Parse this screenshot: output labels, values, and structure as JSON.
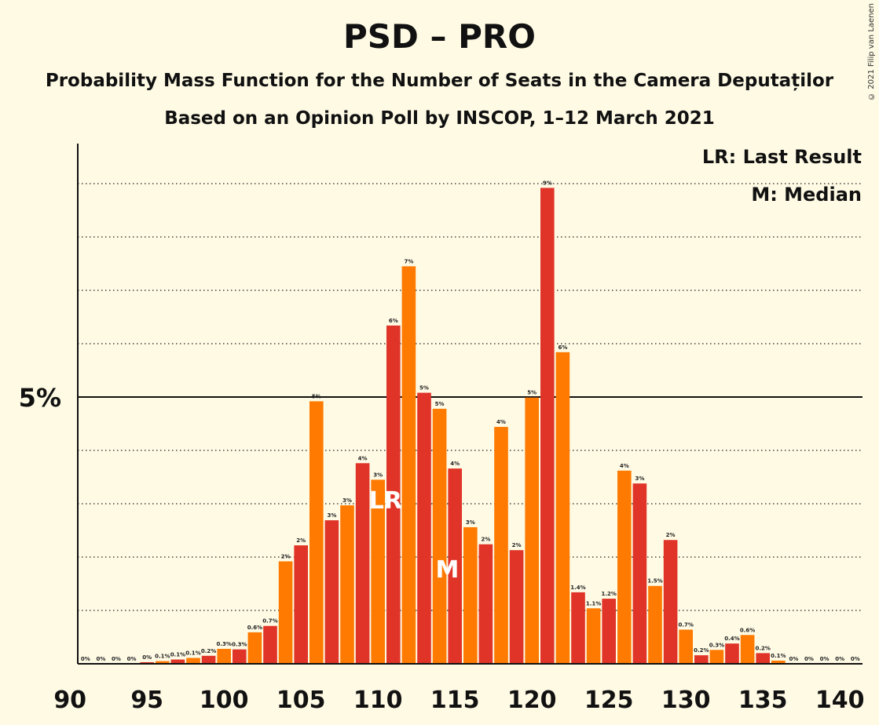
{
  "chart_data": {
    "type": "bar",
    "title": "PSD – PRO",
    "subtitle": "Probability Mass Function for the Number of Seats in the Camera Deputaților",
    "subtitle2": "Based on an Opinion Poll by INSCOP, 1–12 March 2021",
    "credit": "© 2021 Filip van Laenen",
    "xlabel": "",
    "ylabel": "",
    "x_ticks": [
      "90",
      "95",
      "100",
      "105",
      "110",
      "115",
      "120",
      "125",
      "130",
      "135",
      "140"
    ],
    "y_tick_label": "5%",
    "y_tick_value": 5,
    "ylim": [
      0,
      9.75
    ],
    "legend": {
      "position": "top-right",
      "items": [
        "LR: Last Result",
        "M: Median"
      ]
    },
    "last_result_seat": 110,
    "last_result_label": "LR",
    "median_seat": 114,
    "median_label": "M",
    "colors": {
      "red": "#e03428",
      "orange": "#ff7a00",
      "background": "#fefae4"
    },
    "bars": [
      {
        "seat": 91,
        "value": 0.0,
        "label": "0%"
      },
      {
        "seat": 92,
        "value": 0.0,
        "label": "0%"
      },
      {
        "seat": 93,
        "value": 0.0,
        "label": "0%"
      },
      {
        "seat": 94,
        "value": 0.0,
        "label": "0%"
      },
      {
        "seat": 95,
        "value": 0.03,
        "label": "0%"
      },
      {
        "seat": 96,
        "value": 0.05,
        "label": "0.1%"
      },
      {
        "seat": 97,
        "value": 0.08,
        "label": "0.1%"
      },
      {
        "seat": 98,
        "value": 0.11,
        "label": "0.1%"
      },
      {
        "seat": 99,
        "value": 0.15,
        "label": "0.2%"
      },
      {
        "seat": 100,
        "value": 0.28,
        "label": "0.3%"
      },
      {
        "seat": 101,
        "value": 0.27,
        "label": "0.3%"
      },
      {
        "seat": 102,
        "value": 0.59,
        "label": "0.6%"
      },
      {
        "seat": 103,
        "value": 0.71,
        "label": "0.7%"
      },
      {
        "seat": 104,
        "value": 1.92,
        "label": "2%"
      },
      {
        "seat": 105,
        "value": 2.22,
        "label": "2%"
      },
      {
        "seat": 106,
        "value": 4.92,
        "label": "5%"
      },
      {
        "seat": 107,
        "value": 2.69,
        "label": "3%"
      },
      {
        "seat": 108,
        "value": 2.97,
        "label": "3%"
      },
      {
        "seat": 109,
        "value": 3.76,
        "label": "4%"
      },
      {
        "seat": 110,
        "value": 3.45,
        "label": "3%"
      },
      {
        "seat": 111,
        "value": 6.34,
        "label": "6%"
      },
      {
        "seat": 112,
        "value": 7.45,
        "label": "7%"
      },
      {
        "seat": 113,
        "value": 5.08,
        "label": "5%"
      },
      {
        "seat": 114,
        "value": 4.78,
        "label": "5%"
      },
      {
        "seat": 115,
        "value": 3.66,
        "label": "4%"
      },
      {
        "seat": 116,
        "value": 2.56,
        "label": "3%"
      },
      {
        "seat": 117,
        "value": 2.24,
        "label": "2%"
      },
      {
        "seat": 118,
        "value": 4.44,
        "label": "4%"
      },
      {
        "seat": 119,
        "value": 2.13,
        "label": "2%"
      },
      {
        "seat": 120,
        "value": 4.99,
        "label": "5%"
      },
      {
        "seat": 121,
        "value": 8.92,
        "label": "9%"
      },
      {
        "seat": 122,
        "value": 5.84,
        "label": "6%"
      },
      {
        "seat": 123,
        "value": 1.34,
        "label": "1.4%"
      },
      {
        "seat": 124,
        "value": 1.04,
        "label": "1.1%"
      },
      {
        "seat": 125,
        "value": 1.22,
        "label": "1.2%"
      },
      {
        "seat": 126,
        "value": 3.62,
        "label": "4%"
      },
      {
        "seat": 127,
        "value": 3.38,
        "label": "3%"
      },
      {
        "seat": 128,
        "value": 1.46,
        "label": "1.5%"
      },
      {
        "seat": 129,
        "value": 2.32,
        "label": "2%"
      },
      {
        "seat": 130,
        "value": 0.64,
        "label": "0.7%"
      },
      {
        "seat": 131,
        "value": 0.16,
        "label": "0.2%"
      },
      {
        "seat": 132,
        "value": 0.26,
        "label": "0.3%"
      },
      {
        "seat": 133,
        "value": 0.38,
        "label": "0.4%"
      },
      {
        "seat": 134,
        "value": 0.54,
        "label": "0.6%"
      },
      {
        "seat": 135,
        "value": 0.2,
        "label": "0.2%"
      },
      {
        "seat": 136,
        "value": 0.06,
        "label": "0.1%"
      },
      {
        "seat": 137,
        "value": 0.0,
        "label": "0%"
      },
      {
        "seat": 138,
        "value": 0.0,
        "label": "0%"
      },
      {
        "seat": 139,
        "value": 0.0,
        "label": "0%"
      },
      {
        "seat": 140,
        "value": 0.0,
        "label": "0%"
      },
      {
        "seat": 141,
        "value": 0.0,
        "label": "0%"
      }
    ]
  }
}
